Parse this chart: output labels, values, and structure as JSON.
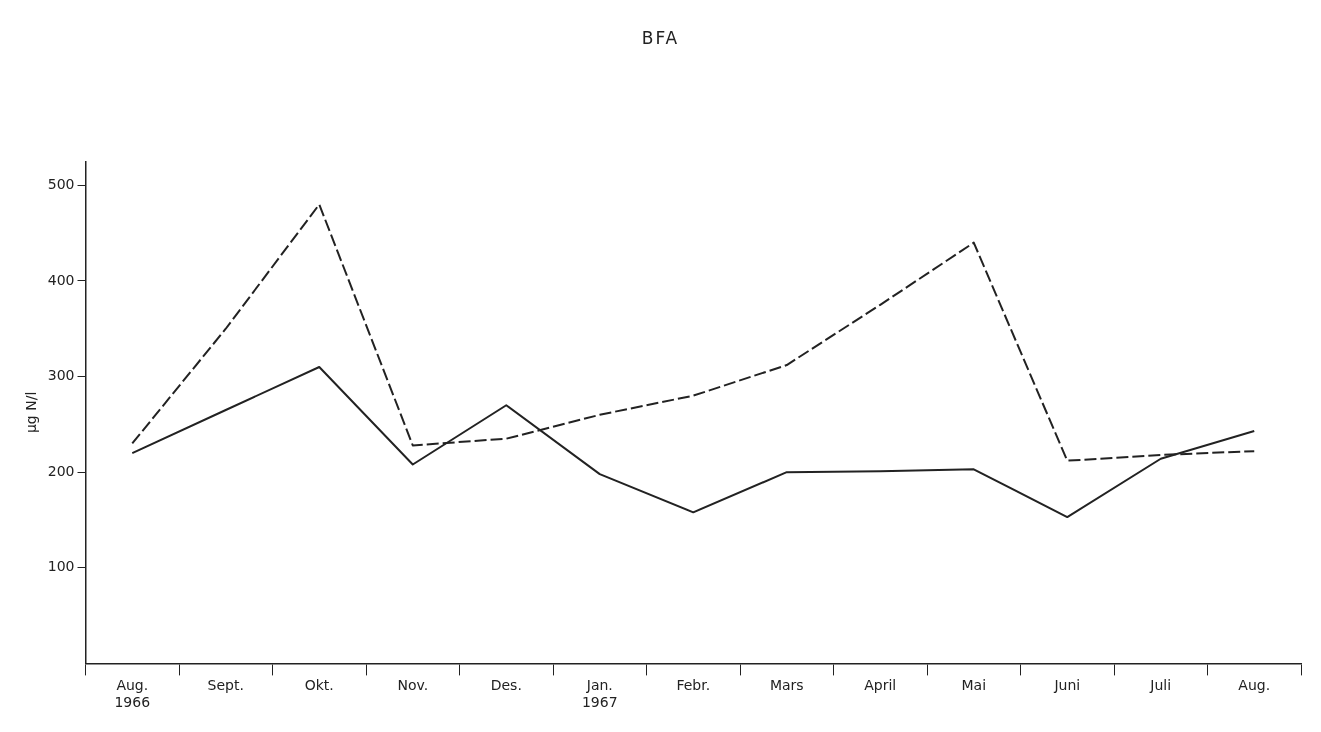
{
  "chart_data": {
    "type": "line",
    "title": "BFA",
    "ylabel": "µg N/l",
    "categories": [
      "Aug.\n1966",
      "Sept.",
      "Okt.",
      "Nov.",
      "Des.",
      "Jan.\n1967",
      "Febr.",
      "Mars",
      "April",
      "Mai",
      "Juni",
      "Juli",
      "Aug."
    ],
    "series": [
      {
        "color": "#222222",
        "line_style": "solid",
        "values": [
          220,
          265,
          310,
          208,
          270,
          198,
          158,
          200,
          201,
          203,
          153,
          214,
          243
        ]
      },
      {
        "color": "#222222",
        "line_style": "dashed",
        "values": [
          230,
          350,
          480,
          228,
          235,
          260,
          280,
          312,
          375,
          440,
          212,
          218,
          222
        ]
      }
    ],
    "ylim": [
      0,
      525
    ],
    "yticks": [
      100,
      200,
      300,
      400,
      500
    ],
    "grid": false,
    "legend": false,
    "marker": "none"
  }
}
